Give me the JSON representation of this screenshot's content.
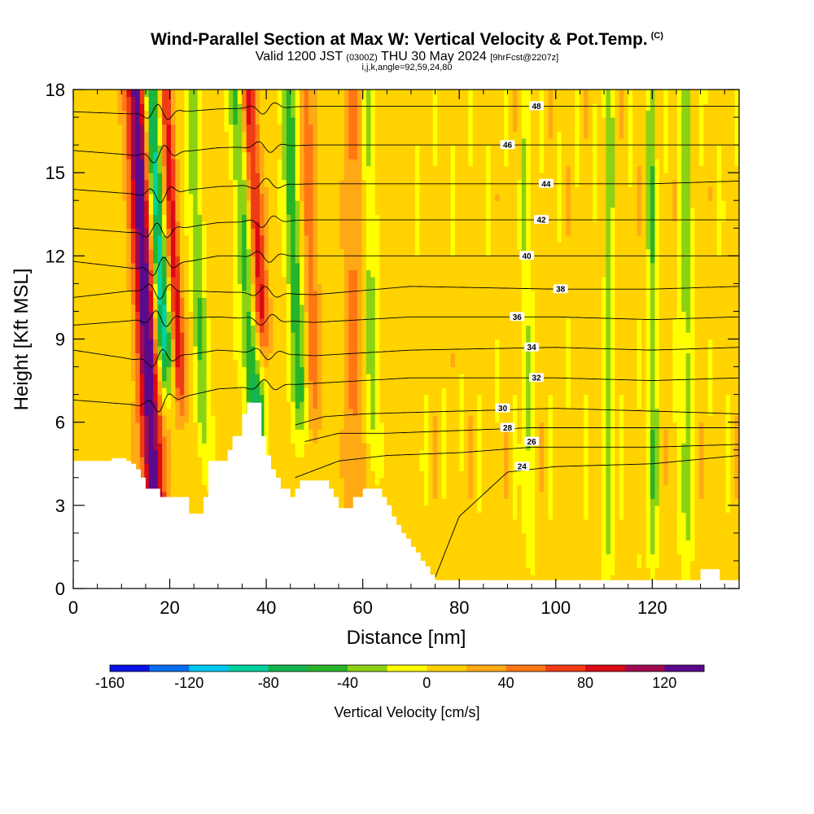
{
  "header": {
    "title_main": "Wind-Parallel Section at Max W: Vertical Velocity & Pot.Temp.",
    "title_mark": "(C)",
    "valid_prefix": "Valid 1200 JST",
    "valid_utc": "(0300Z)",
    "valid_date": "THU 30 May 2024",
    "forecast_info": "[9hrFcst@2207z]",
    "grid_info": "i,j,k,angle=92,59,24,80"
  },
  "chart_data": {
    "type": "heatmap",
    "xlabel": "Distance [nm]",
    "ylabel": "Height [Kft MSL]",
    "xlim": [
      0,
      138
    ],
    "ylim": [
      0,
      18
    ],
    "x_ticks": [
      0,
      20,
      40,
      60,
      80,
      100,
      120
    ],
    "y_ticks": [
      0,
      3,
      6,
      9,
      12,
      15,
      18
    ],
    "colorbar": {
      "label": "Vertical Velocity [cm/s]",
      "ticks": [
        -160,
        -120,
        -80,
        -40,
        0,
        40,
        80,
        120
      ],
      "range": [
        -160,
        140
      ],
      "step": 20,
      "colors": [
        "#0a14e6",
        "#0a6ef0",
        "#00c8f0",
        "#00d2a0",
        "#14b450",
        "#28b428",
        "#8cd214",
        "#ffff00",
        "#ffd200",
        "#ffaa14",
        "#ff7814",
        "#f03c14",
        "#dc0a14",
        "#a00a50",
        "#5a0a8c"
      ]
    },
    "terrain_top_kft": [
      [
        0,
        4.6
      ],
      [
        7,
        4.6
      ],
      [
        8,
        4.7
      ],
      [
        10,
        4.7
      ],
      [
        11,
        4.6
      ],
      [
        12,
        4.5
      ],
      [
        13,
        4.3
      ],
      [
        14,
        4.0
      ],
      [
        15,
        3.6
      ],
      [
        17,
        3.6
      ],
      [
        18,
        3.3
      ],
      [
        23,
        3.3
      ],
      [
        24,
        2.7
      ],
      [
        26,
        2.7
      ],
      [
        27,
        3.3
      ],
      [
        28,
        4.6
      ],
      [
        30,
        4.6
      ],
      [
        32,
        5.0
      ],
      [
        33,
        5.5
      ],
      [
        35,
        6.3
      ],
      [
        36,
        6.7
      ],
      [
        38,
        6.7
      ],
      [
        39,
        5.5
      ],
      [
        40,
        4.8
      ],
      [
        41,
        4.3
      ],
      [
        42,
        4.0
      ],
      [
        43,
        3.6
      ],
      [
        44,
        3.6
      ],
      [
        45,
        3.3
      ],
      [
        46,
        3.6
      ],
      [
        47,
        3.9
      ],
      [
        52,
        3.9
      ],
      [
        53,
        3.6
      ],
      [
        54,
        3.3
      ],
      [
        55,
        2.9
      ],
      [
        57,
        2.9
      ],
      [
        58,
        3.3
      ],
      [
        60,
        3.6
      ],
      [
        63,
        3.6
      ],
      [
        64,
        3.3
      ],
      [
        65,
        3.0
      ],
      [
        66,
        2.6
      ],
      [
        67,
        2.3
      ],
      [
        68,
        2.0
      ],
      [
        69,
        1.8
      ],
      [
        70,
        1.5
      ],
      [
        71,
        1.3
      ],
      [
        72,
        1.0
      ],
      [
        73,
        0.8
      ],
      [
        74,
        0.5
      ],
      [
        75,
        0.3
      ],
      [
        129,
        0.3
      ],
      [
        130,
        0.7
      ],
      [
        133,
        0.7
      ],
      [
        134,
        0.3
      ],
      [
        138,
        0.3
      ]
    ],
    "theta_contours": [
      {
        "level": 24,
        "label_at": [
          93,
          4.4
        ],
        "heights": [
          [
            75,
            0.4
          ],
          [
            80,
            2.6
          ],
          [
            90,
            4.2
          ],
          [
            100,
            4.4
          ],
          [
            120,
            4.5
          ],
          [
            138,
            4.8
          ]
        ]
      },
      {
        "level": 26,
        "label_at": [
          95,
          5.3
        ],
        "heights": [
          [
            46,
            4.0
          ],
          [
            55,
            4.6
          ],
          [
            65,
            4.8
          ],
          [
            80,
            4.9
          ],
          [
            95,
            5.1
          ],
          [
            120,
            5.1
          ],
          [
            138,
            5.2
          ]
        ]
      },
      {
        "level": 28,
        "label_at": [
          90,
          5.8
        ],
        "heights": [
          [
            48,
            5.3
          ],
          [
            55,
            5.6
          ],
          [
            65,
            5.6
          ],
          [
            80,
            5.7
          ],
          [
            95,
            5.8
          ],
          [
            120,
            5.8
          ],
          [
            138,
            5.8
          ]
        ]
      },
      {
        "level": 30,
        "label_at": [
          89,
          6.5
        ],
        "heights": [
          [
            46,
            5.9
          ],
          [
            52,
            6.2
          ],
          [
            60,
            6.3
          ],
          [
            80,
            6.4
          ],
          [
            100,
            6.5
          ],
          [
            120,
            6.4
          ],
          [
            138,
            6.3
          ]
        ]
      },
      {
        "level": 32,
        "label_at": [
          96,
          7.6
        ],
        "heights": [
          [
            0,
            6.8
          ],
          [
            15,
            6.6
          ],
          [
            30,
            7.2
          ],
          [
            50,
            7.4
          ],
          [
            70,
            7.6
          ],
          [
            100,
            7.6
          ],
          [
            120,
            7.5
          ],
          [
            138,
            7.6
          ]
        ]
      },
      {
        "level": 34,
        "label_at": [
          95,
          8.7
        ],
        "heights": [
          [
            0,
            8.6
          ],
          [
            15,
            8.2
          ],
          [
            30,
            8.6
          ],
          [
            50,
            8.4
          ],
          [
            70,
            8.6
          ],
          [
            100,
            8.7
          ],
          [
            120,
            8.6
          ],
          [
            138,
            8.7
          ]
        ]
      },
      {
        "level": 36,
        "label_at": [
          92,
          9.8
        ],
        "heights": [
          [
            0,
            9.5
          ],
          [
            15,
            9.7
          ],
          [
            30,
            9.8
          ],
          [
            50,
            9.6
          ],
          [
            70,
            9.8
          ],
          [
            100,
            9.8
          ],
          [
            120,
            9.7
          ],
          [
            138,
            9.8
          ]
        ]
      },
      {
        "level": 38,
        "label_at": [
          101,
          10.8
        ],
        "heights": [
          [
            0,
            10.5
          ],
          [
            15,
            10.8
          ],
          [
            30,
            10.7
          ],
          [
            50,
            10.6
          ],
          [
            70,
            10.9
          ],
          [
            100,
            10.8
          ],
          [
            120,
            10.8
          ],
          [
            138,
            10.9
          ]
        ]
      },
      {
        "level": 40,
        "label_at": [
          94,
          12.0
        ],
        "heights": [
          [
            0,
            11.8
          ],
          [
            15,
            11.5
          ],
          [
            30,
            12.0
          ],
          [
            50,
            12.0
          ],
          [
            70,
            12.0
          ],
          [
            100,
            12.0
          ],
          [
            120,
            12.0
          ],
          [
            138,
            12.0
          ]
        ]
      },
      {
        "level": 42,
        "label_at": [
          97,
          13.3
        ],
        "heights": [
          [
            0,
            13.0
          ],
          [
            15,
            12.8
          ],
          [
            30,
            13.2
          ],
          [
            50,
            13.3
          ],
          [
            70,
            13.3
          ],
          [
            100,
            13.3
          ],
          [
            120,
            13.3
          ],
          [
            138,
            13.3
          ]
        ]
      },
      {
        "level": 44,
        "label_at": [
          98,
          14.6
        ],
        "heights": [
          [
            0,
            14.4
          ],
          [
            15,
            14.2
          ],
          [
            30,
            14.5
          ],
          [
            50,
            14.6
          ],
          [
            70,
            14.6
          ],
          [
            100,
            14.6
          ],
          [
            120,
            14.6
          ],
          [
            138,
            14.7
          ]
        ]
      },
      {
        "level": 46,
        "label_at": [
          90,
          16.0
        ],
        "heights": [
          [
            0,
            15.8
          ],
          [
            15,
            15.6
          ],
          [
            30,
            15.9
          ],
          [
            50,
            16.0
          ],
          [
            70,
            16.0
          ],
          [
            100,
            16.0
          ],
          [
            120,
            16.0
          ],
          [
            138,
            16.0
          ]
        ]
      },
      {
        "level": 48,
        "label_at": [
          96,
          17.4
        ],
        "heights": [
          [
            0,
            17.2
          ],
          [
            15,
            17.1
          ],
          [
            30,
            17.3
          ],
          [
            50,
            17.4
          ],
          [
            70,
            17.4
          ],
          [
            100,
            17.4
          ],
          [
            120,
            17.4
          ],
          [
            138,
            17.4
          ]
        ]
      }
    ]
  }
}
